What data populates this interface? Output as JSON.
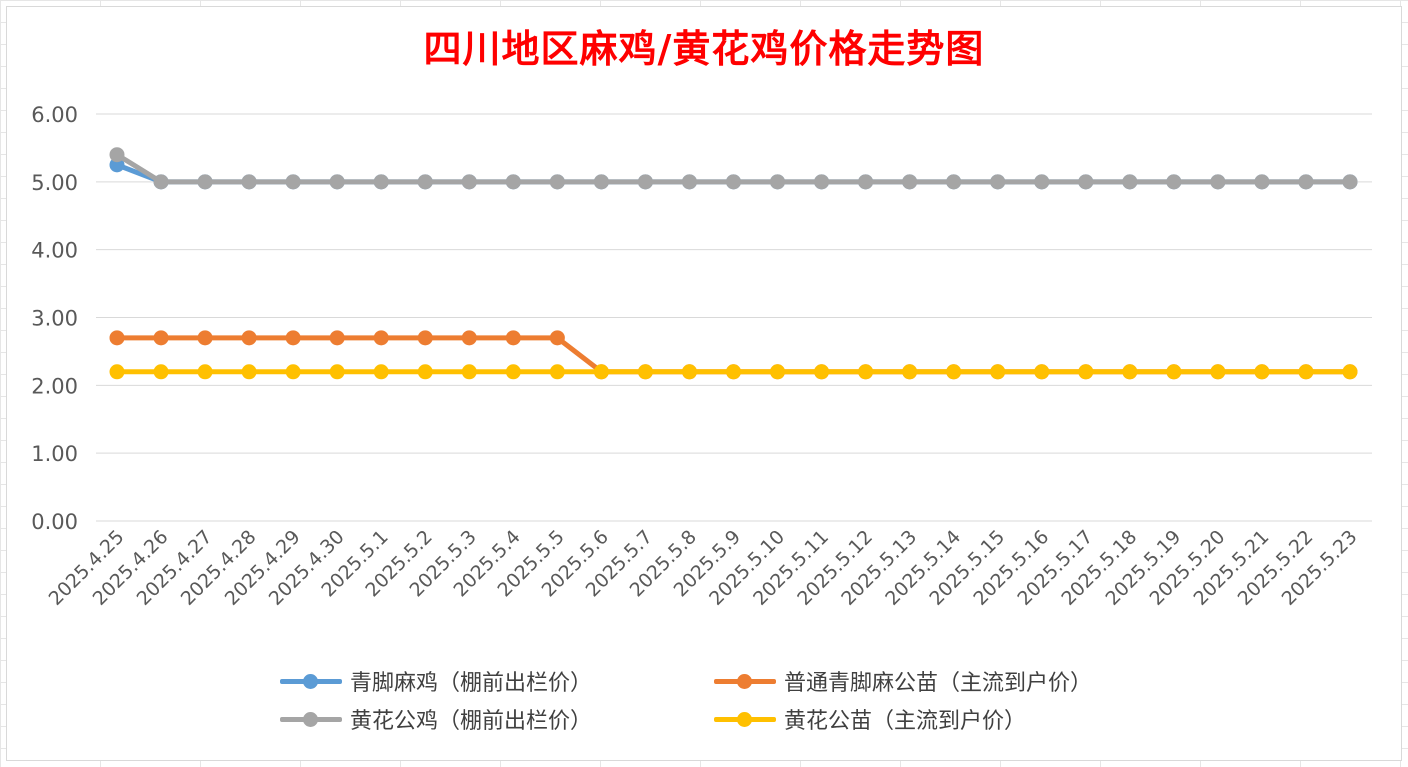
{
  "chart_data": {
    "type": "line",
    "title": "四川地区麻鸡/黄花鸡价格走势图",
    "xlabel": "",
    "ylabel": "",
    "ylim": [
      0,
      6
    ],
    "yticks": [
      "0.00",
      "1.00",
      "2.00",
      "3.00",
      "4.00",
      "5.00",
      "6.00"
    ],
    "grid": true,
    "legend_position": "bottom",
    "categories": [
      "2025.4.25",
      "2025.4.26",
      "2025.4.27",
      "2025.4.28",
      "2025.4.29",
      "2025.4.30",
      "2025.5.1",
      "2025.5.2",
      "2025.5.3",
      "2025.5.4",
      "2025.5.5",
      "2025.5.6",
      "2025.5.7",
      "2025.5.8",
      "2025.5.9",
      "2025.5.10",
      "2025.5.11",
      "2025.5.12",
      "2025.5.13",
      "2025.5.14",
      "2025.5.15",
      "2025.5.16",
      "2025.5.17",
      "2025.5.18",
      "2025.5.19",
      "2025.5.20",
      "2025.5.21",
      "2025.5.22",
      "2025.5.23"
    ],
    "series": [
      {
        "name": "青脚麻鸡（棚前出栏价）",
        "color": "#5b9bd5",
        "values": [
          5.25,
          5.0,
          5.0,
          5.0,
          5.0,
          5.0,
          5.0,
          5.0,
          5.0,
          5.0,
          5.0,
          5.0,
          5.0,
          5.0,
          5.0,
          5.0,
          5.0,
          5.0,
          5.0,
          5.0,
          5.0,
          5.0,
          5.0,
          5.0,
          5.0,
          5.0,
          5.0,
          5.0,
          5.0
        ]
      },
      {
        "name": "普通青脚麻公苗（主流到户价）",
        "color": "#ed7d31",
        "values": [
          2.7,
          2.7,
          2.7,
          2.7,
          2.7,
          2.7,
          2.7,
          2.7,
          2.7,
          2.7,
          2.7,
          2.2,
          2.2,
          2.2,
          2.2,
          2.2,
          2.2,
          2.2,
          2.2,
          2.2,
          2.2,
          2.2,
          2.2,
          2.2,
          2.2,
          2.2,
          2.2,
          2.2,
          2.2
        ]
      },
      {
        "name": "黄花公鸡（棚前出栏价）",
        "color": "#a5a5a5",
        "values": [
          5.4,
          5.0,
          5.0,
          5.0,
          5.0,
          5.0,
          5.0,
          5.0,
          5.0,
          5.0,
          5.0,
          5.0,
          5.0,
          5.0,
          5.0,
          5.0,
          5.0,
          5.0,
          5.0,
          5.0,
          5.0,
          5.0,
          5.0,
          5.0,
          5.0,
          5.0,
          5.0,
          5.0,
          5.0
        ]
      },
      {
        "name": "黄花公苗（主流到户价）",
        "color": "#ffc000",
        "values": [
          2.2,
          2.2,
          2.2,
          2.2,
          2.2,
          2.2,
          2.2,
          2.2,
          2.2,
          2.2,
          2.2,
          2.2,
          2.2,
          2.2,
          2.2,
          2.2,
          2.2,
          2.2,
          2.2,
          2.2,
          2.2,
          2.2,
          2.2,
          2.2,
          2.2,
          2.2,
          2.2,
          2.2,
          2.2
        ]
      }
    ]
  }
}
